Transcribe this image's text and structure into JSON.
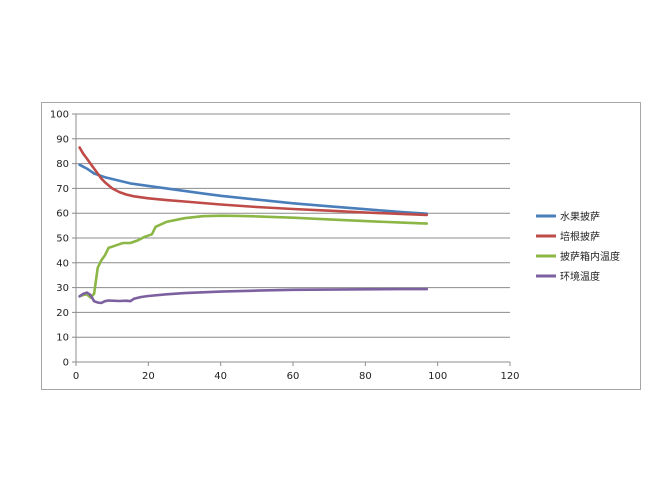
{
  "chart_data": {
    "type": "line",
    "title": "",
    "xlabel": "",
    "ylabel": "",
    "xlim": [
      0,
      120
    ],
    "ylim": [
      0,
      100
    ],
    "x_ticks": [
      0,
      20,
      40,
      60,
      80,
      100,
      120
    ],
    "y_ticks": [
      0,
      10,
      20,
      30,
      40,
      50,
      60,
      70,
      80,
      90,
      100
    ],
    "grid": "horizontal",
    "legend_position": "right",
    "series": [
      {
        "name": "水果披萨",
        "color": "#4a7ebb",
        "points": [
          [
            1,
            79.5
          ],
          [
            3,
            78
          ],
          [
            5,
            76
          ],
          [
            8,
            74.5
          ],
          [
            10,
            73.8
          ],
          [
            15,
            72
          ],
          [
            20,
            71
          ],
          [
            25,
            70
          ],
          [
            30,
            69
          ],
          [
            35,
            68
          ],
          [
            40,
            67
          ],
          [
            50,
            65.5
          ],
          [
            60,
            64
          ],
          [
            70,
            62.8
          ],
          [
            80,
            61.6
          ],
          [
            90,
            60.5
          ],
          [
            97,
            59.8
          ]
        ]
      },
      {
        "name": "培根披萨",
        "color": "#be4b48",
        "points": [
          [
            1,
            86.5
          ],
          [
            2,
            84
          ],
          [
            3,
            82
          ],
          [
            4,
            80
          ],
          [
            5,
            78
          ],
          [
            6,
            76
          ],
          [
            7,
            74
          ],
          [
            8,
            72.5
          ],
          [
            10,
            70
          ],
          [
            12,
            68.5
          ],
          [
            14,
            67.5
          ],
          [
            16,
            66.8
          ],
          [
            20,
            66
          ],
          [
            25,
            65.3
          ],
          [
            30,
            64.7
          ],
          [
            40,
            63.5
          ],
          [
            50,
            62.5
          ],
          [
            60,
            61.7
          ],
          [
            70,
            61
          ],
          [
            80,
            60.3
          ],
          [
            90,
            59.7
          ],
          [
            97,
            59.3
          ]
        ]
      },
      {
        "name": "披萨箱内温度",
        "color": "#8cb746",
        "points": [
          [
            1,
            26.5
          ],
          [
            2,
            27
          ],
          [
            3,
            27.3
          ],
          [
            4,
            26
          ],
          [
            5,
            27.5
          ],
          [
            6,
            38
          ],
          [
            7,
            41
          ],
          [
            8,
            43
          ],
          [
            9,
            46
          ],
          [
            10,
            46.5
          ],
          [
            12,
            47.5
          ],
          [
            13,
            48
          ],
          [
            15,
            48
          ],
          [
            17,
            49
          ],
          [
            19,
            50.5
          ],
          [
            21,
            51.5
          ],
          [
            22,
            54.5
          ],
          [
            25,
            56.5
          ],
          [
            30,
            58
          ],
          [
            35,
            58.8
          ],
          [
            40,
            59
          ],
          [
            45,
            58.9
          ],
          [
            50,
            58.7
          ],
          [
            60,
            58.2
          ],
          [
            70,
            57.5
          ],
          [
            80,
            56.8
          ],
          [
            90,
            56.2
          ],
          [
            97,
            55.8
          ]
        ]
      },
      {
        "name": "环境温度",
        "color": "#7d60a0",
        "points": [
          [
            1,
            26.5
          ],
          [
            2,
            27.5
          ],
          [
            3,
            28
          ],
          [
            4,
            27
          ],
          [
            5,
            24.5
          ],
          [
            6,
            24
          ],
          [
            7,
            23.8
          ],
          [
            8,
            24.5
          ],
          [
            9,
            24.8
          ],
          [
            10,
            24.7
          ],
          [
            12,
            24.6
          ],
          [
            14,
            24.7
          ],
          [
            15,
            24.5
          ],
          [
            16,
            25.5
          ],
          [
            18,
            26.2
          ],
          [
            20,
            26.6
          ],
          [
            25,
            27.3
          ],
          [
            30,
            27.8
          ],
          [
            40,
            28.4
          ],
          [
            50,
            28.8
          ],
          [
            60,
            29.1
          ],
          [
            70,
            29.2
          ],
          [
            80,
            29.3
          ],
          [
            90,
            29.4
          ],
          [
            97,
            29.4
          ]
        ]
      }
    ]
  }
}
